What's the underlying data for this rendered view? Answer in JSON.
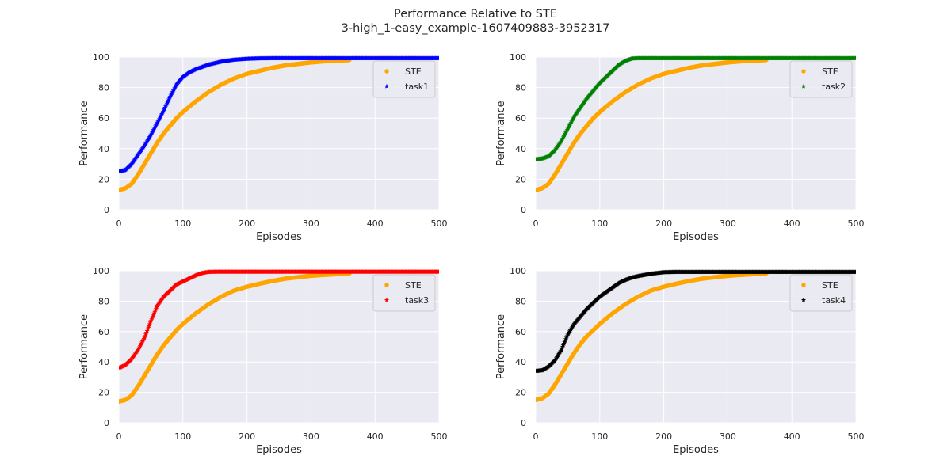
{
  "figure": {
    "title_line1": "Performance Relative to STE",
    "title_line2": "3-high_1-easy_example-1607409883-3952317"
  },
  "colors": {
    "panel_bg": "#eaeaf2",
    "grid": "#ffffff",
    "STE": "#ffa500",
    "task1": "#0000ff",
    "task2": "#008000",
    "task3": "#ff0000",
    "task4": "#000000"
  },
  "chart_data": [
    {
      "type": "scatter",
      "xlabel": "Episodes",
      "ylabel": "Performance",
      "xlim": [
        0,
        500
      ],
      "ylim": [
        0,
        100
      ],
      "xticks": [
        0,
        100,
        200,
        300,
        400,
        500
      ],
      "yticks": [
        0,
        20,
        40,
        60,
        80,
        100
      ],
      "grid": true,
      "legend_position": "top-right",
      "series": [
        {
          "name": "STE",
          "color": "#ffa500",
          "marker": "hexagon",
          "x": [
            0,
            10,
            20,
            30,
            40,
            50,
            60,
            70,
            80,
            90,
            100,
            120,
            140,
            160,
            180,
            200,
            220,
            240,
            260,
            280,
            300,
            320,
            340,
            360
          ],
          "y": [
            13,
            14,
            17,
            23,
            30,
            37,
            44,
            50,
            55,
            60,
            64,
            71,
            77,
            82,
            86,
            89,
            91,
            93,
            94.5,
            95.5,
            96.5,
            97.2,
            97.7,
            98
          ]
        },
        {
          "name": "task1",
          "color": "#0000ff",
          "marker": "star",
          "x": [
            0,
            10,
            20,
            30,
            40,
            50,
            60,
            70,
            80,
            90,
            100,
            110,
            120,
            140,
            160,
            180,
            200,
            220,
            240,
            500
          ],
          "y": [
            25,
            26,
            30,
            36,
            42,
            49,
            57,
            65,
            74,
            82,
            87,
            90,
            92,
            95,
            97,
            98.2,
            98.8,
            99.1,
            99.2,
            99.2
          ]
        }
      ]
    },
    {
      "type": "scatter",
      "xlabel": "Episodes",
      "ylabel": "Performance",
      "xlim": [
        0,
        500
      ],
      "ylim": [
        0,
        100
      ],
      "xticks": [
        0,
        100,
        200,
        300,
        400,
        500
      ],
      "yticks": [
        0,
        20,
        40,
        60,
        80,
        100
      ],
      "grid": true,
      "legend_position": "top-right",
      "series": [
        {
          "name": "STE",
          "color": "#ffa500",
          "marker": "hexagon",
          "x": [
            0,
            10,
            20,
            30,
            40,
            50,
            60,
            70,
            80,
            90,
            100,
            120,
            140,
            160,
            180,
            200,
            220,
            240,
            260,
            280,
            300,
            320,
            340,
            360
          ],
          "y": [
            13,
            14,
            17,
            23,
            30,
            37,
            44,
            50,
            55,
            60,
            64,
            71,
            77,
            82,
            86,
            89,
            91,
            93,
            94.5,
            95.5,
            96.5,
            97.2,
            97.7,
            98
          ]
        },
        {
          "name": "task2",
          "color": "#008000",
          "marker": "star",
          "x": [
            0,
            10,
            20,
            30,
            40,
            50,
            60,
            70,
            80,
            90,
            100,
            110,
            120,
            130,
            140,
            150,
            160,
            200,
            500
          ],
          "y": [
            33,
            33.5,
            35,
            39,
            45,
            53,
            61,
            67,
            73,
            78,
            83,
            87,
            91,
            95,
            97.5,
            99,
            99.2,
            99.2,
            99.2
          ]
        }
      ]
    },
    {
      "type": "scatter",
      "xlabel": "Episodes",
      "ylabel": "Performance",
      "xlim": [
        0,
        500
      ],
      "ylim": [
        0,
        100
      ],
      "xticks": [
        0,
        100,
        200,
        300,
        400,
        500
      ],
      "yticks": [
        0,
        20,
        40,
        60,
        80,
        100
      ],
      "grid": true,
      "legend_position": "top-right",
      "series": [
        {
          "name": "STE",
          "color": "#ffa500",
          "marker": "hexagon",
          "x": [
            0,
            10,
            20,
            30,
            40,
            50,
            60,
            70,
            80,
            90,
            100,
            120,
            140,
            160,
            180,
            200,
            220,
            240,
            260,
            280,
            300,
            320,
            340,
            360
          ],
          "y": [
            14,
            15,
            18,
            24,
            31,
            38,
            45,
            51,
            56,
            61,
            65,
            72,
            78,
            83,
            87,
            89.5,
            91.5,
            93.3,
            94.8,
            95.8,
            96.7,
            97.3,
            97.8,
            98.2
          ]
        },
        {
          "name": "task3",
          "color": "#ff0000",
          "marker": "star",
          "x": [
            0,
            10,
            20,
            30,
            40,
            50,
            60,
            70,
            80,
            90,
            100,
            110,
            120,
            130,
            140,
            150,
            500
          ],
          "y": [
            36,
            38,
            42,
            48,
            56,
            67,
            77,
            83,
            87,
            91,
            93,
            95,
            97,
            98.5,
            99.2,
            99.3,
            99.3
          ]
        }
      ]
    },
    {
      "type": "scatter",
      "xlabel": "Episodes",
      "ylabel": "Performance",
      "xlim": [
        0,
        500
      ],
      "ylim": [
        0,
        100
      ],
      "xticks": [
        0,
        100,
        200,
        300,
        400,
        500
      ],
      "yticks": [
        0,
        20,
        40,
        60,
        80,
        100
      ],
      "grid": true,
      "legend_position": "top-right",
      "series": [
        {
          "name": "STE",
          "color": "#ffa500",
          "marker": "hexagon",
          "x": [
            0,
            10,
            20,
            30,
            40,
            50,
            60,
            70,
            80,
            90,
            100,
            120,
            140,
            160,
            180,
            200,
            220,
            240,
            260,
            280,
            300,
            320,
            340,
            360
          ],
          "y": [
            15,
            16,
            19,
            25,
            32,
            39,
            46,
            52,
            57,
            61,
            65,
            72,
            78,
            83,
            87,
            89.5,
            91.5,
            93.3,
            94.8,
            95.8,
            96.7,
            97.3,
            97.8,
            98.2
          ]
        },
        {
          "name": "task4",
          "color": "#000000",
          "marker": "star",
          "x": [
            0,
            10,
            20,
            30,
            40,
            50,
            60,
            70,
            80,
            90,
            100,
            110,
            120,
            130,
            140,
            150,
            160,
            180,
            200,
            220,
            500
          ],
          "y": [
            34,
            34.5,
            37,
            41,
            48,
            58,
            65,
            70,
            75,
            79,
            83,
            86,
            89,
            92,
            94,
            95.5,
            96.5,
            98,
            99,
            99.2,
            99.2
          ]
        }
      ]
    }
  ]
}
